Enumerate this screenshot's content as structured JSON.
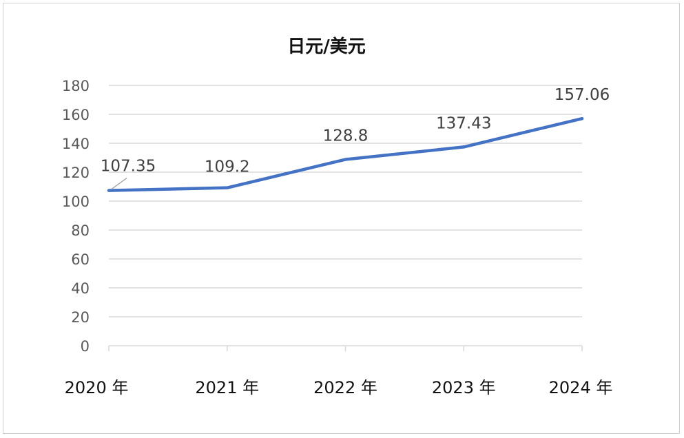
{
  "chart_data": {
    "type": "line",
    "title": "日元/美元",
    "categories": [
      "2020 年",
      "2021 年",
      "2022 年",
      "2023 年",
      "2024 年"
    ],
    "series": [
      {
        "values": [
          107.35,
          109.2,
          128.8,
          137.43,
          157.06
        ],
        "data_labels": [
          "107.35",
          "109.2",
          "128.8",
          "137.43",
          "157.06"
        ],
        "color": "#4472C4"
      }
    ],
    "ylim": [
      0,
      180
    ],
    "yticks": [
      "0",
      "20",
      "40",
      "60",
      "80",
      "100",
      "120",
      "140",
      "160",
      "180"
    ],
    "grid": true,
    "xlabel": "",
    "ylabel": ""
  },
  "colors": {
    "line": "#4472C4",
    "grid": "#d9d9d9",
    "frame": "#d0d0d0"
  }
}
